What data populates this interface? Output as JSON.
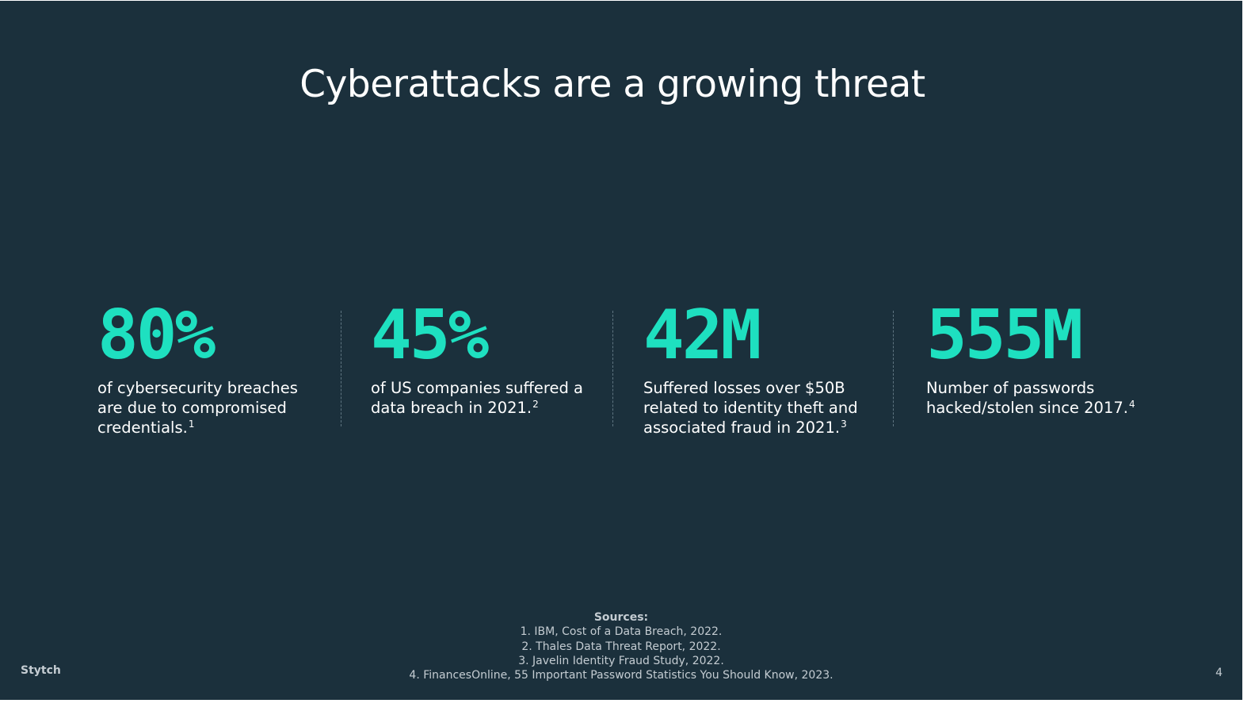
{
  "title": "Cyberattacks are a growing threat",
  "stats": [
    {
      "value": "80%",
      "lines": [
        "of cybersecurity breaches",
        "are due to compromised",
        "credentials."
      ],
      "footnote": "1"
    },
    {
      "value": "45%",
      "lines": [
        "of US companies suffered a",
        "data breach in 2021."
      ],
      "footnote": "2"
    },
    {
      "value": "42M",
      "lines": [
        "Suffered losses over $50B",
        "related to identity theft and",
        "associated fraud in 2021."
      ],
      "footnote": "3"
    },
    {
      "value": "555M",
      "lines": [
        "Number of passwords",
        "hacked/stolen since 2017."
      ],
      "footnote": "4"
    }
  ],
  "sources": {
    "heading": "Sources:",
    "items": [
      "1. IBM, Cost of a Data Breach, 2022.",
      "2. Thales Data Threat Report, 2022.",
      "3. Javelin Identity Fraud Study, 2022.",
      "4. FinancesOnline, 55 Important Password Statistics You Should Know, 2023."
    ]
  },
  "footer": {
    "brand": "Stytch",
    "page_number": "4"
  },
  "colors": {
    "background": "#1b303c",
    "accent": "#1ee0c0",
    "text": "#ffffff",
    "muted": "#c4ccd2"
  }
}
